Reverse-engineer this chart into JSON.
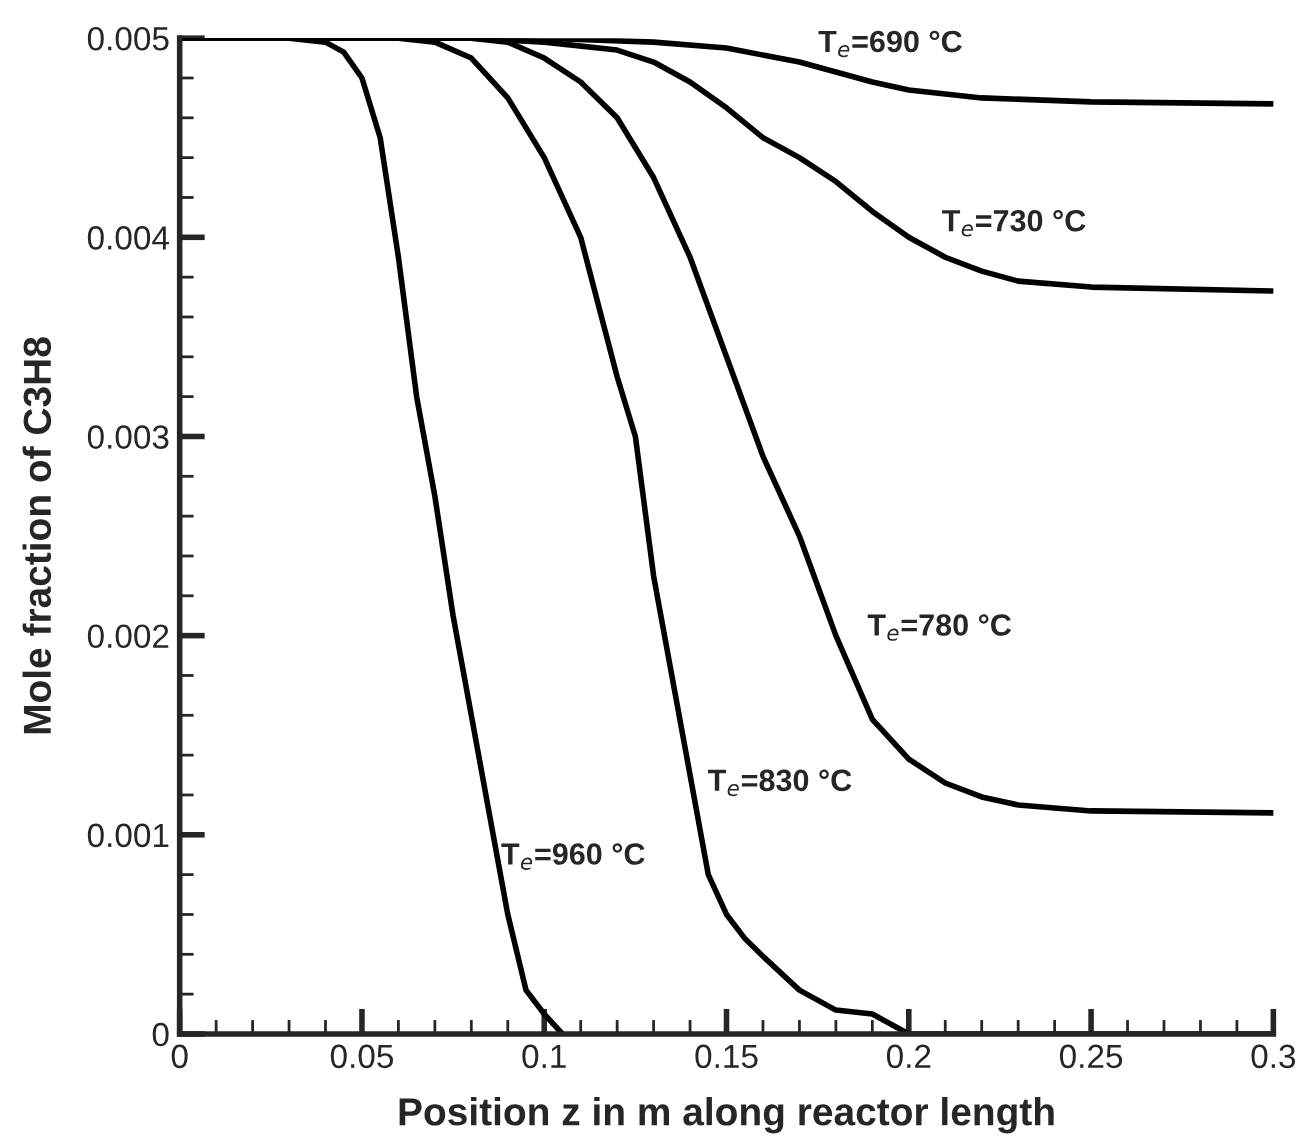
{
  "chart_data": {
    "type": "line",
    "xlabel": "Position z in m along reactor length",
    "ylabel": "Mole fraction of C3H8",
    "xlim": [
      0,
      0.3
    ],
    "ylim": [
      0,
      0.005
    ],
    "xticks": [
      0,
      0.05,
      0.1,
      0.15,
      0.2,
      0.25,
      0.3
    ],
    "yticks": [
      0,
      0.001,
      0.002,
      0.003,
      0.004,
      0.005
    ],
    "grid": false,
    "legend": false,
    "marker": "none",
    "line_style": "solid",
    "series": [
      {
        "name": "T$_{e}$=690 °C",
        "color": "#000000",
        "x": [
          0,
          0.1,
          0.13,
          0.15,
          0.17,
          0.18,
          0.19,
          0.2,
          0.22,
          0.25,
          0.3
        ],
        "values": [
          0.005,
          0.005,
          0.00498,
          0.00495,
          0.00488,
          0.00483,
          0.00478,
          0.00474,
          0.0047,
          0.00468,
          0.00467
        ]
      },
      {
        "name": "T$_{e}$=730 °C",
        "color": "#000000",
        "x": [
          0,
          0.08,
          0.1,
          0.12,
          0.13,
          0.14,
          0.15,
          0.16,
          0.17,
          0.18,
          0.19,
          0.2,
          0.21,
          0.22,
          0.23,
          0.25,
          0.3
        ],
        "values": [
          0.005,
          0.005,
          0.00498,
          0.00494,
          0.00488,
          0.00478,
          0.00465,
          0.0045,
          0.0044,
          0.00428,
          0.00413,
          0.004,
          0.0039,
          0.00383,
          0.00378,
          0.00375,
          0.00373
        ]
      },
      {
        "name": "T$_{e}$=780 °C",
        "color": "#000000",
        "x": [
          0,
          0.08,
          0.09,
          0.1,
          0.11,
          0.12,
          0.13,
          0.14,
          0.15,
          0.16,
          0.17,
          0.18,
          0.19,
          0.2,
          0.21,
          0.22,
          0.23,
          0.25,
          0.3
        ],
        "values": [
          0.005,
          0.005,
          0.00498,
          0.0049,
          0.00478,
          0.0046,
          0.0043,
          0.0039,
          0.0034,
          0.0029,
          0.0025,
          0.002,
          0.00158,
          0.00138,
          0.00126,
          0.00119,
          0.00115,
          0.00112,
          0.00111
        ]
      },
      {
        "name": "T$_{e}$=830 °C",
        "color": "#000000",
        "x": [
          0,
          0.06,
          0.07,
          0.08,
          0.09,
          0.1,
          0.11,
          0.12,
          0.125,
          0.13,
          0.135,
          0.14,
          0.145,
          0.15,
          0.155,
          0.16,
          0.17,
          0.18,
          0.19,
          0.2,
          0.22,
          0.3
        ],
        "values": [
          0.005,
          0.005,
          0.00498,
          0.0049,
          0.0047,
          0.0044,
          0.004,
          0.0033,
          0.003,
          0.0023,
          0.0018,
          0.0013,
          0.0008,
          0.0006,
          0.00048,
          0.00039,
          0.00022,
          0.00012,
          0.0001,
          0,
          0,
          0
        ]
      },
      {
        "name": "T$_{e}$=960 °C",
        "color": "#000000",
        "x": [
          0,
          0.03,
          0.04,
          0.045,
          0.05,
          0.055,
          0.06,
          0.065,
          0.07,
          0.075,
          0.08,
          0.085,
          0.09,
          0.095,
          0.1,
          0.105
        ],
        "values": [
          0.005,
          0.005,
          0.00498,
          0.00493,
          0.0048,
          0.0045,
          0.0039,
          0.0032,
          0.0027,
          0.0021,
          0.0016,
          0.0011,
          0.0006,
          0.00022,
          0.0001,
          0
        ]
      }
    ]
  }
}
